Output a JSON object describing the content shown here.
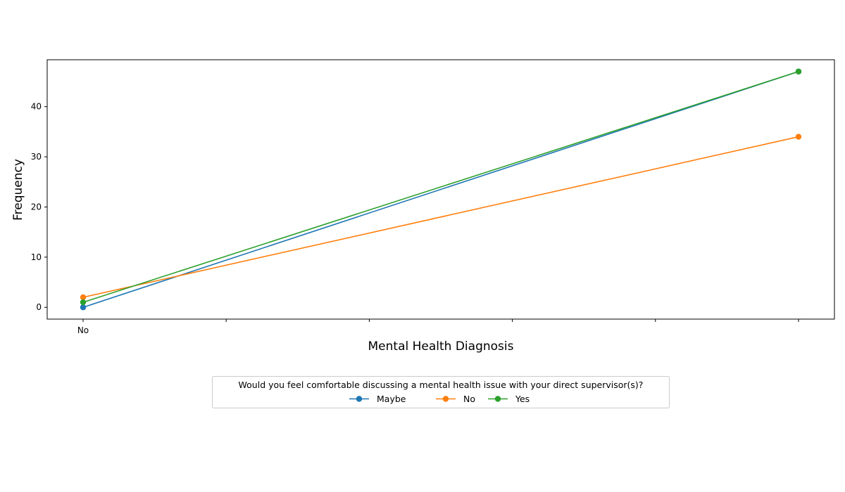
{
  "chart_data": {
    "type": "line",
    "title": "",
    "xlabel": "Mental Health Diagnosis",
    "ylabel": "Frequency",
    "x_tick_labels": [
      "No",
      "",
      "",
      "",
      "",
      ""
    ],
    "y_ticks": [
      0,
      10,
      20,
      30,
      40
    ],
    "ylim": [
      -2.35,
      49.35
    ],
    "grid": false,
    "legend": {
      "title": "Would you feel comfortable discussing a mental health issue with your direct supervisor(s)?",
      "placement": "bottom-center"
    },
    "series": [
      {
        "name": "Maybe",
        "color": "#1f77b4",
        "x": [
          0,
          5
        ],
        "values": [
          0,
          47
        ]
      },
      {
        "name": "No",
        "color": "#ff7f0e",
        "x": [
          0,
          5
        ],
        "values": [
          2,
          34
        ]
      },
      {
        "name": "Yes",
        "color": "#2ca02c",
        "x": [
          0,
          5
        ],
        "values": [
          1,
          47
        ]
      }
    ]
  }
}
